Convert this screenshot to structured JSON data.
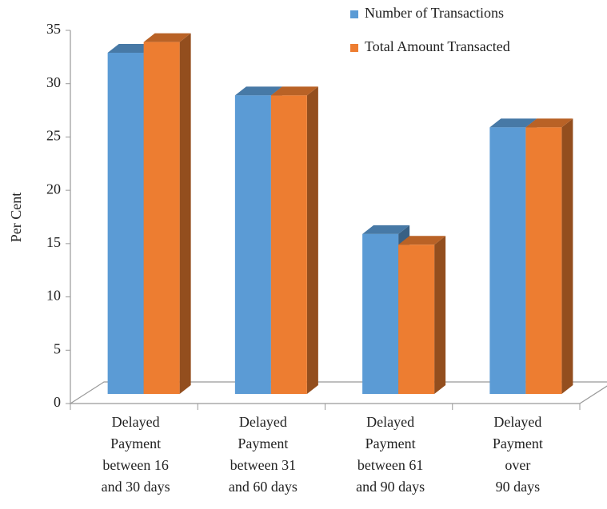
{
  "chart_data": {
    "type": "bar3d",
    "y_label": "Per Cent",
    "categories": [
      "Delayed\nPayment\nbetween 16\nand 30 days",
      "Delayed\nPayment\nbetween 31\nand 60 days",
      "Delayed\nPayment\nbetween 61\nand 90 days",
      "Delayed\nPayment\nover\n90 days"
    ],
    "series": [
      {
        "name": "Number of Transactions",
        "color": "#5b9bd5",
        "values": [
          32,
          28,
          15,
          25
        ]
      },
      {
        "name": "Total Amount Transacted",
        "color": "#ed7d31",
        "values": [
          33,
          28,
          14,
          25
        ]
      }
    ],
    "ylim": [
      0,
      35
    ],
    "yticks": [
      0,
      5,
      10,
      15,
      20,
      25,
      30,
      35
    ]
  }
}
